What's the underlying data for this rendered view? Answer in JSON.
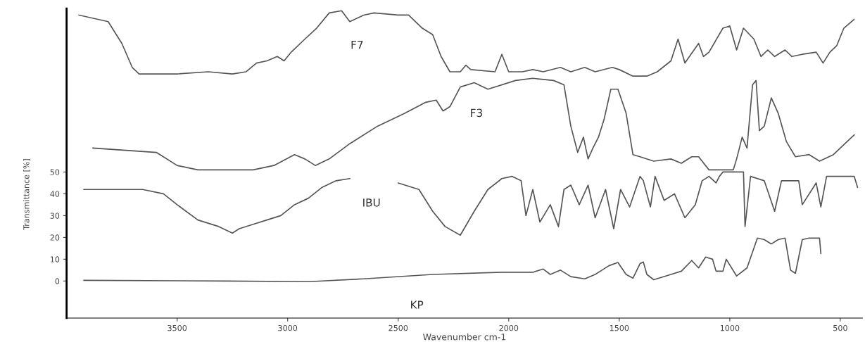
{
  "chart_data": {
    "type": "line",
    "xlabel": "Wavenumber cm-1",
    "ylabel": "Transmittance [%]",
    "xlim": [
      4000,
      400
    ],
    "ylim": [
      -17,
      125
    ],
    "xticks": [
      3500,
      3000,
      2500,
      2000,
      1500,
      1000,
      500
    ],
    "yticks": [
      0,
      10,
      20,
      30,
      40,
      50
    ],
    "grid": false,
    "legend": false,
    "marker": "none",
    "line_style": "solid",
    "series": [
      {
        "name": "F7",
        "color": "#555555",
        "x": [
          3944,
          3812,
          3750,
          3703,
          3672,
          3500,
          3359,
          3250,
          3188,
          3141,
          3094,
          3047,
          3016,
          2984,
          2922,
          2869,
          2812,
          2756,
          2719,
          2656,
          2609,
          2500,
          2453,
          2391,
          2344,
          2306,
          2266,
          2219,
          2194,
          2172,
          2062,
          2031,
          2000,
          1938,
          1891,
          1844,
          1766,
          1719,
          1656,
          1609,
          1531,
          1500,
          1438,
          1375,
          1328,
          1266,
          1234,
          1203,
          1141,
          1119,
          1094,
          1031,
          1000,
          969,
          938,
          891,
          859,
          828,
          797,
          750,
          719,
          672,
          609,
          578,
          547,
          516,
          484,
          438
        ],
        "values": [
          122,
          119,
          109,
          98,
          95,
          95,
          96,
          95,
          96,
          100,
          101,
          103,
          101,
          105,
          111,
          116,
          123,
          124,
          119,
          122,
          123,
          122,
          122,
          116,
          113,
          103,
          96,
          96,
          99,
          97,
          96,
          104,
          96,
          96,
          97,
          96,
          98,
          96,
          98,
          96,
          98,
          97,
          94,
          94,
          96,
          101,
          111,
          100,
          109,
          103,
          105,
          116,
          117,
          106,
          116,
          111,
          103,
          106,
          103,
          106,
          103,
          104,
          105,
          100,
          105,
          108,
          116,
          120
        ]
      },
      {
        "name": "F3",
        "color": "#555555",
        "x": [
          3881,
          3594,
          3500,
          3406,
          3156,
          3062,
          2969,
          2922,
          2875,
          2812,
          2719,
          2594,
          2469,
          2375,
          2328,
          2297,
          2266,
          2219,
          2156,
          2094,
          1969,
          1891,
          1797,
          1750,
          1719,
          1688,
          1662,
          1641,
          1619,
          1594,
          1569,
          1538,
          1506,
          1469,
          1438,
          1406,
          1344,
          1266,
          1219,
          1172,
          1141,
          1094,
          984,
          969,
          944,
          922,
          897,
          881,
          866,
          844,
          812,
          781,
          744,
          703,
          641,
          594,
          531,
          469,
          437
        ],
        "values": [
          61,
          59,
          53,
          51,
          51,
          53,
          58,
          56,
          53,
          56,
          63,
          71,
          77,
          82,
          83,
          78,
          80,
          89,
          91,
          88,
          92,
          93,
          92,
          90,
          71,
          59,
          66,
          56,
          61,
          66,
          74,
          88,
          88,
          77,
          58,
          57,
          55,
          56,
          54,
          57,
          57,
          51,
          51,
          56,
          66,
          61,
          90,
          92,
          69,
          71,
          84,
          77,
          64,
          57,
          58,
          55,
          58,
          64,
          67
        ]
      },
      {
        "name": "IBU",
        "color": "#555555",
        "x": [
          3922,
          3750,
          3656,
          3562,
          3500,
          3406,
          3312,
          3250,
          3219,
          3156,
          3094,
          3031,
          2969,
          2906,
          2844,
          2781,
          2719,
          2600,
          2500,
          2406,
          2344,
          2288,
          2219,
          2156,
          2094,
          2031,
          1984,
          1944,
          1922,
          1891,
          1859,
          1812,
          1775,
          1750,
          1719,
          1681,
          1641,
          1609,
          1562,
          1525,
          1494,
          1453,
          1406,
          1391,
          1359,
          1338,
          1297,
          1250,
          1203,
          1156,
          1125,
          1094,
          1062,
          1047,
          1031,
          938,
          931,
          906,
          844,
          797,
          766,
          688,
          672,
          609,
          588,
          562,
          437,
          422
        ],
        "values": [
          42,
          42,
          42,
          40,
          35,
          28,
          25,
          22,
          24,
          26,
          28,
          30,
          35,
          38,
          43,
          46,
          47,
          null,
          45,
          42,
          32,
          25,
          21,
          32,
          42,
          47,
          48,
          46,
          30,
          42,
          27,
          35,
          25,
          42,
          44,
          35,
          44,
          29,
          42,
          24,
          42,
          34,
          48,
          46,
          34,
          48,
          37,
          40,
          29,
          35,
          46,
          48,
          45,
          48,
          50,
          50,
          25,
          48,
          46,
          32,
          46,
          46,
          35,
          45,
          34,
          48,
          48,
          43
        ]
      },
      {
        "name": "KP",
        "color": "#555555",
        "x": [
          3922,
          3281,
          2906,
          2656,
          2344,
          2031,
          1891,
          1844,
          1812,
          1766,
          1719,
          1656,
          1609,
          1578,
          1547,
          1506,
          1469,
          1438,
          1406,
          1391,
          1375,
          1344,
          1266,
          1219,
          1172,
          1141,
          1109,
          1078,
          1062,
          1031,
          1016,
          969,
          922,
          875,
          844,
          812,
          781,
          750,
          725,
          703,
          672,
          641,
          594,
          588
        ],
        "values": [
          0.3,
          0,
          -0.3,
          1,
          3,
          4,
          4,
          5.5,
          3,
          5,
          2,
          1,
          3,
          5,
          7,
          8.5,
          3,
          1.3,
          8,
          8.7,
          3,
          0.6,
          3,
          4.5,
          9.4,
          6,
          11,
          10,
          4.5,
          4.5,
          10,
          2.3,
          6,
          19.7,
          19,
          17,
          19,
          19.7,
          5,
          3.5,
          19,
          19.7,
          19.7,
          12.6
        ]
      }
    ]
  }
}
